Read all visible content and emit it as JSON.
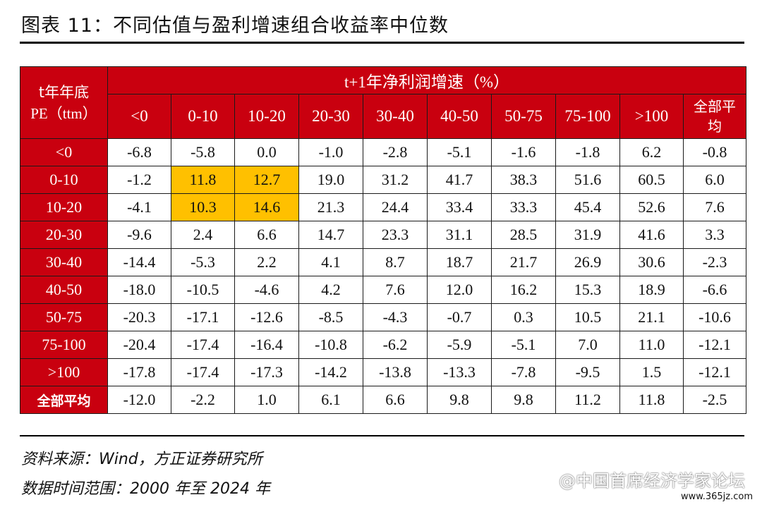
{
  "title": "图表 11：不同估值与盈利增速组合收益率中位数",
  "table": {
    "corner": [
      "t年年底",
      "PE（ttm）"
    ],
    "group_header": "t+1年净利润增速（%）",
    "columns": [
      "<0",
      "0-10",
      "10-20",
      "20-30",
      "30-40",
      "40-50",
      "50-75",
      "75-100",
      ">100",
      "全部平均"
    ],
    "rows": [
      {
        "label": "<0",
        "values": [
          "-6.8",
          "-5.8",
          "0.0",
          "-1.0",
          "-2.8",
          "-5.1",
          "-1.6",
          "-1.8",
          "6.2",
          "-0.8"
        ]
      },
      {
        "label": "0-10",
        "values": [
          "-1.2",
          "11.8",
          "12.7",
          "19.0",
          "31.2",
          "41.7",
          "38.3",
          "51.6",
          "60.5",
          "6.0"
        ]
      },
      {
        "label": "10-20",
        "values": [
          "-4.1",
          "10.3",
          "14.6",
          "21.3",
          "24.4",
          "33.4",
          "33.3",
          "45.4",
          "52.6",
          "7.6"
        ]
      },
      {
        "label": "20-30",
        "values": [
          "-9.6",
          "2.4",
          "6.6",
          "14.7",
          "23.3",
          "31.1",
          "28.5",
          "31.9",
          "41.6",
          "3.3"
        ]
      },
      {
        "label": "30-40",
        "values": [
          "-14.4",
          "-5.3",
          "2.2",
          "4.1",
          "8.7",
          "18.7",
          "21.7",
          "26.9",
          "30.6",
          "-2.3"
        ]
      },
      {
        "label": "40-50",
        "values": [
          "-18.0",
          "-10.5",
          "-4.6",
          "4.2",
          "7.6",
          "12.0",
          "16.2",
          "15.3",
          "18.9",
          "-6.6"
        ]
      },
      {
        "label": "50-75",
        "values": [
          "-20.3",
          "-17.1",
          "-12.6",
          "-8.5",
          "-4.3",
          "-0.7",
          "0.3",
          "10.5",
          "21.1",
          "-10.6"
        ]
      },
      {
        "label": "75-100",
        "values": [
          "-20.4",
          "-17.4",
          "-16.4",
          "-10.8",
          "-6.2",
          "-5.9",
          "-5.1",
          "7.0",
          "11.0",
          "-12.1"
        ]
      },
      {
        "label": ">100",
        "values": [
          "-17.8",
          "-17.4",
          "-17.3",
          "-14.2",
          "-13.8",
          "-13.3",
          "-7.8",
          "-9.5",
          "1.5",
          "-12.1"
        ]
      },
      {
        "label": "全部平均",
        "values": [
          "-12.0",
          "-2.2",
          "1.0",
          "6.1",
          "6.6",
          "9.8",
          "9.8",
          "11.2",
          "11.8",
          "-2.5"
        ]
      }
    ],
    "highlighted_cells": [
      [
        1,
        1
      ],
      [
        1,
        2
      ],
      [
        2,
        1
      ],
      [
        2,
        2
      ]
    ],
    "colors": {
      "header_red": "#c9000f",
      "highlight": "#ffc000"
    }
  },
  "source": "资料来源：Wind，方正证券研究所",
  "range": "数据时间范围：2000 年至 2024 年",
  "watermark": "@中国首席经济学家论坛",
  "watermark_url": "www.365jz.com"
}
